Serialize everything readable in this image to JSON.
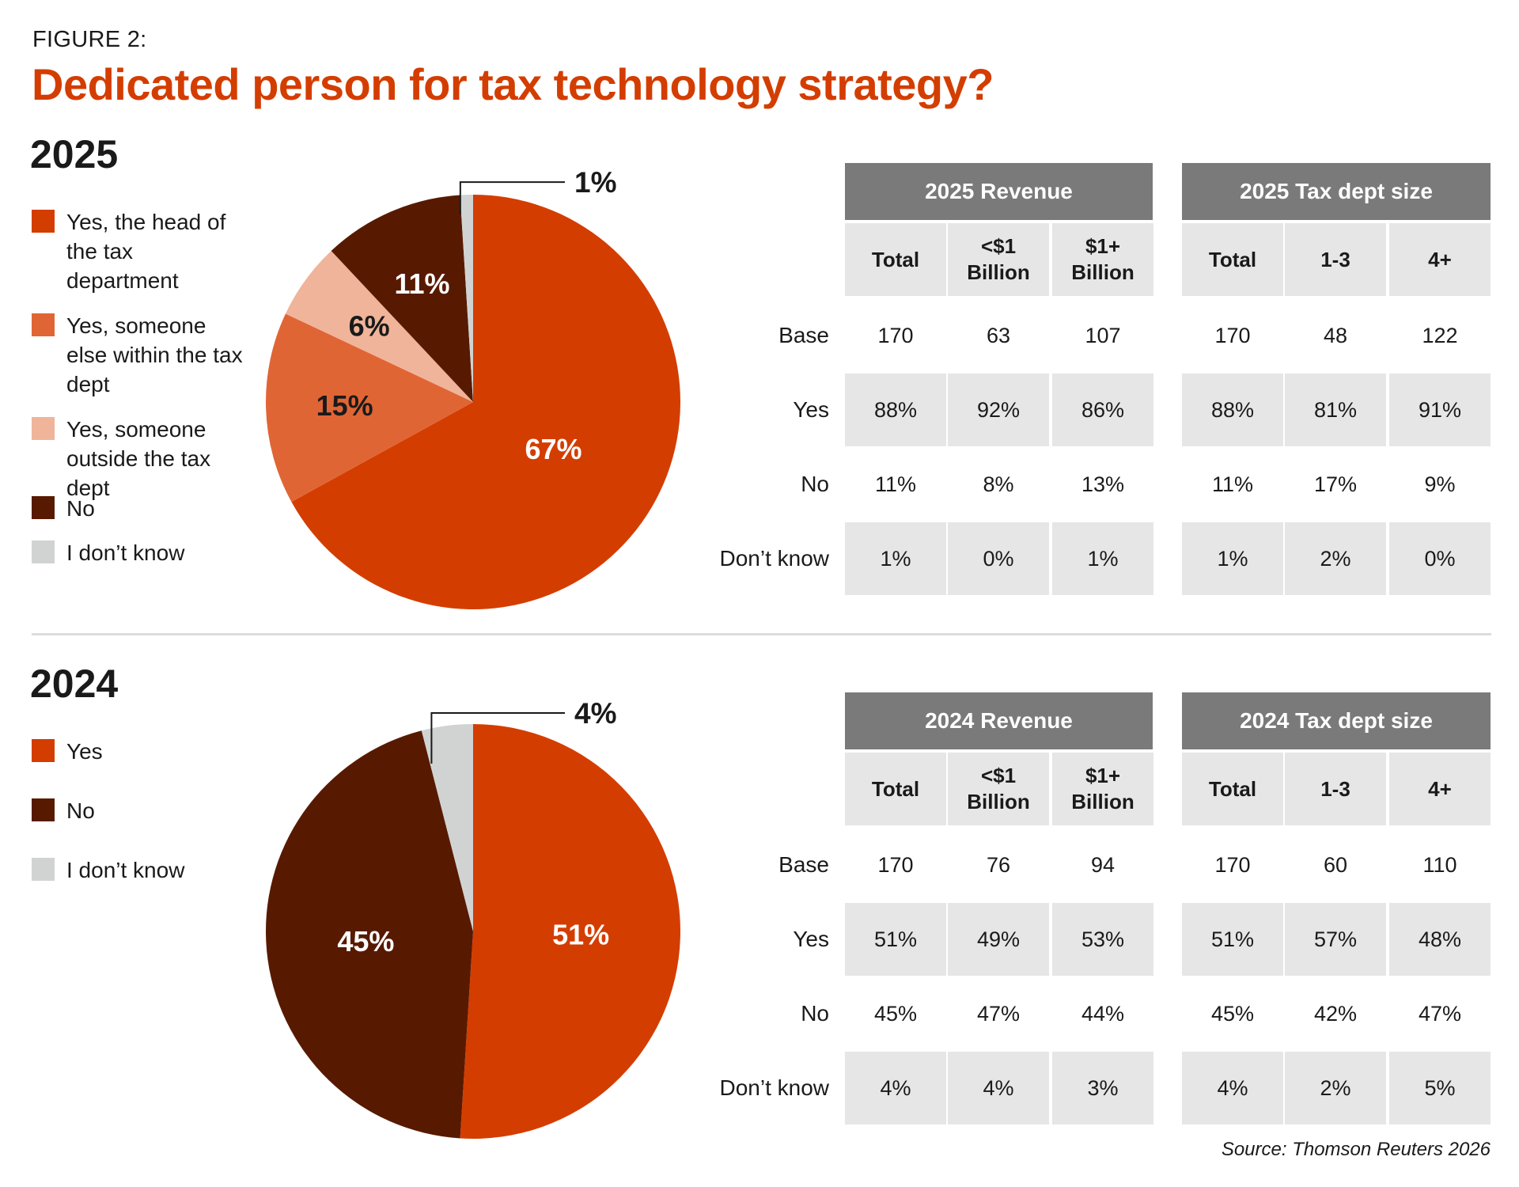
{
  "figure_label": "FIGURE 2:",
  "title": "Dedicated person for tax technology strategy?",
  "source": "Source: Thomson Reuters 2026",
  "colors": {
    "title": "#d43d00",
    "yes_head": "#d43d00",
    "yes_else": "#e06535",
    "yes_outside": "#f0b49a",
    "no": "#571a00",
    "dont_know": "#d0d3d2",
    "table_header": "#7a7a7a",
    "table_shade": "#e6e6e6"
  },
  "sections": [
    {
      "year": "2025",
      "legend": [
        {
          "label": "Yes, the head of the tax department",
          "color": "#d43d00"
        },
        {
          "label": "Yes, someone else within the tax dept",
          "color": "#e06535"
        },
        {
          "label": "Yes, someone outside the tax dept",
          "color": "#f0b49a"
        },
        {
          "label": "No",
          "color": "#571a00"
        },
        {
          "label": "I don’t know",
          "color": "#d0d3d2"
        }
      ],
      "table_groups": [
        {
          "title": "2025 Revenue",
          "columns": [
            "Total",
            "<$1 Billion",
            "$1+ Billion"
          ]
        },
        {
          "title": "2025 Tax dept size",
          "columns": [
            "Total",
            "1-3",
            "4+"
          ]
        }
      ],
      "rows": [
        {
          "label": "Base",
          "values": [
            "170",
            "63",
            "107",
            "170",
            "48",
            "122"
          ]
        },
        {
          "label": "Yes",
          "values": [
            "88%",
            "92%",
            "86%",
            "88%",
            "81%",
            "91%"
          ]
        },
        {
          "label": "No",
          "values": [
            "11%",
            "8%",
            "13%",
            "11%",
            "17%",
            "9%"
          ]
        },
        {
          "label": "Don’t know",
          "values": [
            "1%",
            "0%",
            "1%",
            "1%",
            "2%",
            "0%"
          ]
        }
      ]
    },
    {
      "year": "2024",
      "legend": [
        {
          "label": "Yes",
          "color": "#d43d00"
        },
        {
          "label": "No",
          "color": "#571a00"
        },
        {
          "label": "I don’t know",
          "color": "#d0d3d2"
        }
      ],
      "table_groups": [
        {
          "title": "2024 Revenue",
          "columns": [
            "Total",
            "<$1 Billion",
            "$1+ Billion"
          ]
        },
        {
          "title": "2024 Tax dept size",
          "columns": [
            "Total",
            "1-3",
            "4+"
          ]
        }
      ],
      "rows": [
        {
          "label": "Base",
          "values": [
            "170",
            "76",
            "94",
            "170",
            "60",
            "110"
          ]
        },
        {
          "label": "Yes",
          "values": [
            "51%",
            "49%",
            "53%",
            "51%",
            "57%",
            "48%"
          ]
        },
        {
          "label": "No",
          "values": [
            "45%",
            "47%",
            "44%",
            "45%",
            "42%",
            "47%"
          ]
        },
        {
          "label": "Don’t know",
          "values": [
            "4%",
            "4%",
            "3%",
            "4%",
            "2%",
            "5%"
          ]
        }
      ]
    }
  ],
  "chart_data": [
    {
      "type": "pie",
      "title": "2025",
      "slices": [
        {
          "label": "Yes, the head of the tax department",
          "value": 67,
          "display": "67%",
          "color": "#d43d00"
        },
        {
          "label": "Yes, someone else within the tax dept",
          "value": 15,
          "display": "15%",
          "color": "#e06535"
        },
        {
          "label": "Yes, someone outside the tax dept",
          "value": 6,
          "display": "6%",
          "color": "#f0b49a"
        },
        {
          "label": "No",
          "value": 11,
          "display": "11%",
          "color": "#571a00"
        },
        {
          "label": "I don’t know",
          "value": 1,
          "display": "1%",
          "color": "#d0d3d2"
        }
      ],
      "legend": "left"
    },
    {
      "type": "pie",
      "title": "2024",
      "slices": [
        {
          "label": "Yes",
          "value": 51,
          "display": "51%",
          "color": "#d43d00"
        },
        {
          "label": "No",
          "value": 45,
          "display": "45%",
          "color": "#571a00"
        },
        {
          "label": "I don’t know",
          "value": 4,
          "display": "4%",
          "color": "#d0d3d2"
        }
      ],
      "legend": "left"
    }
  ]
}
